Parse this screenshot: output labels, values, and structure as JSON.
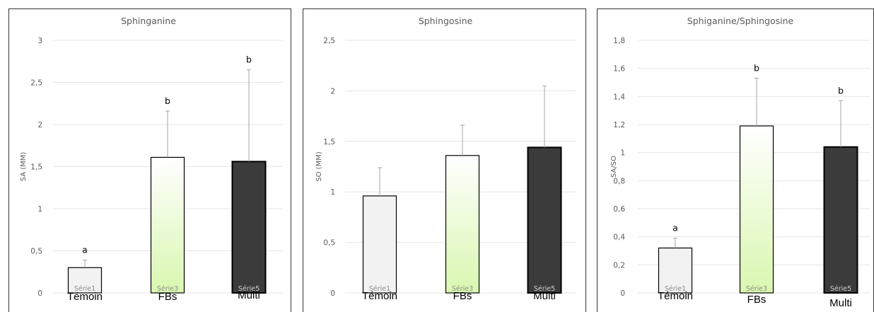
{
  "chart_data": [
    {
      "type": "bar",
      "title": "Sphinganine",
      "ylabel": "SA (MM)",
      "ylim": [
        0,
        3
      ],
      "yticks": [
        "0",
        "0,5",
        "1",
        "1,5",
        "2",
        "2,5",
        "3"
      ],
      "tick_values": [
        0,
        0.5,
        1,
        1.5,
        2,
        2.5,
        3
      ],
      "categories": [
        "Témoin",
        "FBs",
        "Multi"
      ],
      "series_labels": [
        "Série1",
        "Série3",
        "Série5"
      ],
      "values": [
        0.3,
        1.61,
        1.56
      ],
      "errors": [
        0.09,
        0.55,
        1.09
      ],
      "letters": [
        "a",
        "b",
        "b"
      ],
      "grid": true
    },
    {
      "type": "bar",
      "title": "Sphingosine",
      "ylabel": "SO (MM)",
      "ylim": [
        0,
        2.5
      ],
      "yticks": [
        "0",
        "0,5",
        "1",
        "1,5",
        "2",
        "2,5"
      ],
      "tick_values": [
        0,
        0.5,
        1,
        1.5,
        2,
        2.5
      ],
      "categories": [
        "Témoin",
        "FBs",
        "Multi"
      ],
      "series_labels": [
        "Série1",
        "Série3",
        "Série5"
      ],
      "values": [
        0.96,
        1.36,
        1.44
      ],
      "errors": [
        0.28,
        0.3,
        0.61
      ],
      "letters": [
        "",
        "",
        ""
      ],
      "grid": true
    },
    {
      "type": "bar",
      "title": "Sphiganine/Sphingosine",
      "ylabel": "SA/SO",
      "ylim": [
        0,
        1.8
      ],
      "yticks": [
        "0",
        "0,2",
        "0,4",
        "0,6",
        "0,8",
        "1",
        "1,2",
        "1,4",
        "1,6",
        "1,8"
      ],
      "tick_values": [
        0,
        0.2,
        0.4,
        0.6,
        0.8,
        1,
        1.2,
        1.4,
        1.6,
        1.8
      ],
      "categories": [
        "Témoin",
        "FBs",
        "Multi"
      ],
      "series_labels": [
        "Série1",
        "Série3",
        "Série5"
      ],
      "values": [
        0.32,
        1.19,
        1.04
      ],
      "errors": [
        0.07,
        0.34,
        0.33
      ],
      "letters": [
        "a",
        "b",
        "b"
      ],
      "grid": true
    }
  ],
  "colors": {
    "bar_1": "#f2f2f2",
    "bar_2_top": "#ffffff",
    "bar_2_bottom": "#d9f7b0",
    "bar_3": "#3b3b3b",
    "bar_stroke": "#000000",
    "grid": "#e6e6e6",
    "error_bar": "#a6a6a6",
    "frame": "#333333"
  }
}
